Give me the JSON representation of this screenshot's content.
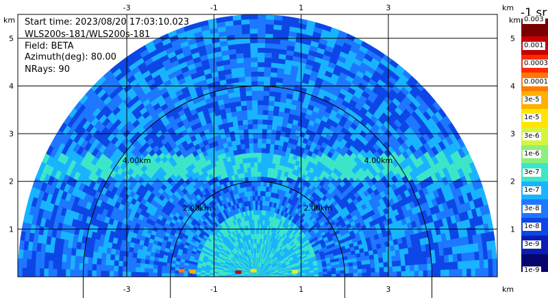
{
  "info": {
    "start_time": "Start time: 2023/08/20 17:03:10.023",
    "instrument": "WLS200s-181/WLS200s-181",
    "field": "Field: BETA",
    "azimuth": "Azimuth(deg): 80.00",
    "nrays": "NRays: 90"
  },
  "colorbar": {
    "title": "-1 sr",
    "labels": [
      "0.003",
      "0.001",
      "0.0003",
      "0.0001",
      "3e-5",
      "1e-5",
      "3e-6",
      "1e-6",
      "3e-7",
      "1e-7",
      "3e-8",
      "1e-8",
      "3e-9",
      "1e-9"
    ],
    "colors": [
      "#7a0000",
      "#c40000",
      "#ff2a00",
      "#ff7a00",
      "#ffb000",
      "#ffe600",
      "#d6f53a",
      "#8cf07c",
      "#3ce6c8",
      "#19b4ff",
      "#1e78ff",
      "#0d46e6",
      "#0a1eb4",
      "#06066e"
    ]
  },
  "chart_data": {
    "type": "heatmap",
    "title": "",
    "xlabel": "km",
    "ylabel": "km",
    "xlim": [
      -5.5,
      5.5
    ],
    "ylim": [
      0,
      5.5
    ],
    "x_ticks": [
      -3,
      -1,
      1,
      3
    ],
    "y_ticks": [
      1,
      2,
      3,
      4,
      5
    ],
    "range_rings_km": [
      2,
      4
    ],
    "ring_labels": [
      "2.00km",
      "2.00km",
      "4.00km",
      "4.00km"
    ],
    "max_range_km": 5.5,
    "grid": true
  }
}
